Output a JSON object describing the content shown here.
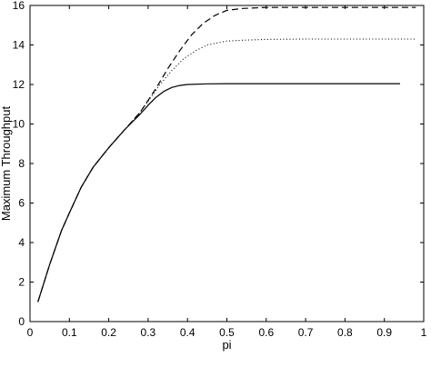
{
  "chart_data": {
    "type": "line",
    "title": "",
    "xlabel": "pi",
    "ylabel": "Maximum Throughput",
    "xlim": [
      0,
      1
    ],
    "ylim": [
      0,
      16
    ],
    "grid": false,
    "x_ticks": [
      0,
      0.1,
      0.2,
      0.3,
      0.4,
      0.5,
      0.6,
      0.7,
      0.8,
      0.9,
      1
    ],
    "x_tick_labels": [
      "0",
      "0.1",
      "0.2",
      "0.3",
      "0.4",
      "0.5",
      "0.6",
      "0.7",
      "0.8",
      "0.9",
      "1"
    ],
    "y_ticks": [
      0,
      2,
      4,
      6,
      8,
      10,
      12,
      14,
      16
    ],
    "y_tick_labels": [
      "0",
      "2",
      "4",
      "6",
      "8",
      "10",
      "12",
      "14",
      "16"
    ],
    "series": [
      {
        "style": "solid",
        "color": "#000000",
        "x": [
          0.02,
          0.05,
          0.08,
          0.1,
          0.13,
          0.16,
          0.2,
          0.24,
          0.28,
          0.3,
          0.32,
          0.34,
          0.36,
          0.38,
          0.4,
          0.45,
          0.5,
          0.6,
          0.7,
          0.8,
          0.94
        ],
        "y": [
          1.0,
          2.9,
          4.6,
          5.5,
          6.8,
          7.8,
          8.8,
          9.7,
          10.5,
          10.95,
          11.35,
          11.65,
          11.85,
          11.95,
          12.0,
          12.03,
          12.04,
          12.04,
          12.04,
          12.04,
          12.04
        ]
      },
      {
        "style": "dashed",
        "color": "#000000",
        "x": [
          0.02,
          0.05,
          0.08,
          0.1,
          0.13,
          0.16,
          0.2,
          0.24,
          0.28,
          0.3,
          0.32,
          0.35,
          0.38,
          0.41,
          0.44,
          0.47,
          0.5,
          0.54,
          0.6,
          0.7,
          0.8,
          0.9,
          0.98
        ],
        "y": [
          1.0,
          2.9,
          4.6,
          5.5,
          6.8,
          7.8,
          8.8,
          9.7,
          10.6,
          11.2,
          11.8,
          12.8,
          13.7,
          14.5,
          15.1,
          15.5,
          15.75,
          15.85,
          15.9,
          15.9,
          15.9,
          15.9,
          15.9
        ]
      },
      {
        "style": "dotted",
        "color": "#000000",
        "x": [
          0.02,
          0.05,
          0.08,
          0.1,
          0.13,
          0.16,
          0.2,
          0.24,
          0.28,
          0.3,
          0.33,
          0.36,
          0.39,
          0.42,
          0.45,
          0.5,
          0.55,
          0.6,
          0.7,
          0.8,
          0.9,
          0.98
        ],
        "y": [
          1.0,
          2.9,
          4.6,
          5.5,
          6.8,
          7.8,
          8.8,
          9.7,
          10.6,
          11.15,
          12.0,
          12.7,
          13.3,
          13.7,
          14.0,
          14.2,
          14.25,
          14.28,
          14.3,
          14.3,
          14.3,
          14.3
        ]
      }
    ]
  }
}
